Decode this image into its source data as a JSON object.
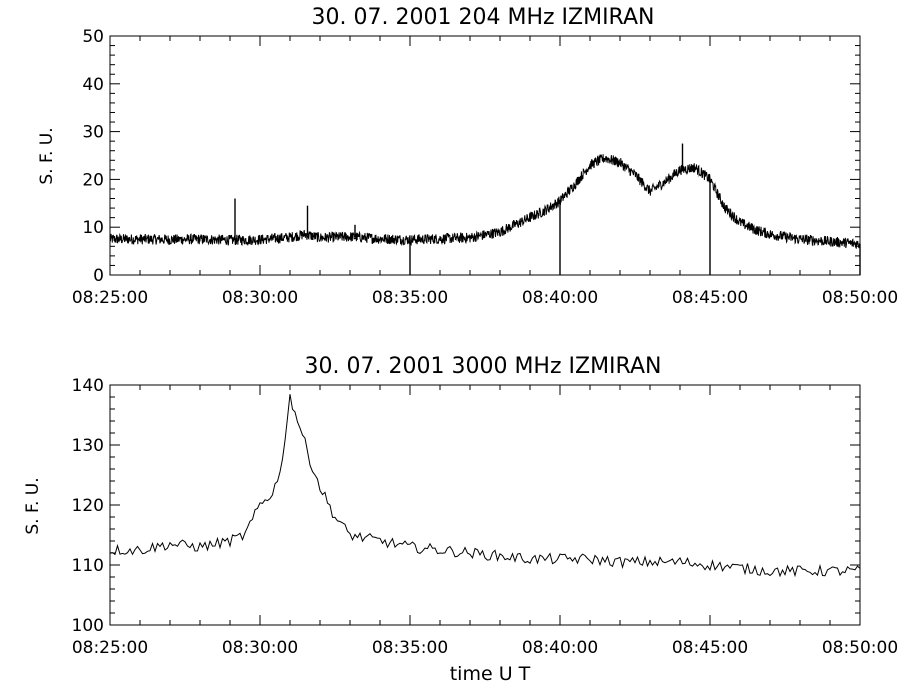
{
  "figure": {
    "background": "#ffffff",
    "line_color": "#000000"
  },
  "chart_data": [
    {
      "type": "line",
      "title": "30.  07.  2001    204  MHz    IZMIRAN",
      "ylabel": "S. F. U.",
      "xlabel": "",
      "xlim": [
        "08:25:00",
        "08:50:00"
      ],
      "ylim": [
        0,
        50
      ],
      "x_ticks": [
        "08:25:00",
        "08:30:00",
        "08:35:00",
        "08:40:00",
        "08:45:00",
        "08:50:00"
      ],
      "y_ticks": [
        "0",
        "10",
        "20",
        "30",
        "40",
        "50"
      ],
      "grid": false,
      "series": [
        {
          "x": [
            "08:25:00",
            "08:26:00",
            "08:27:00",
            "08:28:00",
            "08:29:00",
            "08:30:00",
            "08:31:00",
            "08:31:30",
            "08:32:00",
            "08:33:00",
            "08:34:00",
            "08:35:00",
            "08:36:00",
            "08:37:00",
            "08:38:00",
            "08:38:30",
            "08:39:00",
            "08:39:30",
            "08:40:00",
            "08:40:30",
            "08:41:00",
            "08:41:30",
            "08:42:00",
            "08:42:30",
            "08:43:00",
            "08:43:30",
            "08:44:00",
            "08:44:30",
            "08:45:00",
            "08:45:30",
            "08:46:00",
            "08:46:30",
            "08:47:00",
            "08:48:00",
            "08:49:00",
            "08:50:00"
          ],
          "values": [
            7.5,
            7.5,
            7.4,
            7.5,
            7.3,
            7.4,
            7.9,
            8.5,
            7.8,
            8.0,
            7.6,
            7.4,
            7.6,
            7.8,
            9.0,
            10.5,
            12.0,
            13.5,
            15.5,
            19.0,
            23.0,
            24.5,
            23.5,
            21.0,
            17.5,
            19.5,
            22.0,
            22.5,
            20.0,
            14.0,
            11.0,
            9.5,
            8.5,
            7.5,
            7.0,
            6.5
          ],
          "spikes": [
            {
              "x": "08:29:10",
              "y": 16.0
            },
            {
              "x": "08:31:35",
              "y": 14.5
            },
            {
              "x": "08:33:10",
              "y": 10.5
            },
            {
              "x": "08:35:00",
              "y": 0
            },
            {
              "x": "08:40:00",
              "y": 0
            },
            {
              "x": "08:44:05",
              "y": 27.5
            },
            {
              "x": "08:45:00",
              "y": 0
            },
            {
              "x": "08:50:00",
              "y": 0
            }
          ]
        }
      ]
    },
    {
      "type": "line",
      "title": "30.  07.  2001    3000  MHz    IZMIRAN",
      "ylabel": "S. F. U.",
      "xlabel": "time   U T",
      "xlim": [
        "08:25:00",
        "08:50:00"
      ],
      "ylim": [
        100,
        140
      ],
      "x_ticks": [
        "08:25:00",
        "08:30:00",
        "08:35:00",
        "08:40:00",
        "08:45:00",
        "08:50:00"
      ],
      "y_ticks": [
        "100",
        "110",
        "120",
        "130",
        "140"
      ],
      "grid": false,
      "series": [
        {
          "x": [
            "08:25:00",
            "08:26:00",
            "08:27:00",
            "08:28:00",
            "08:29:00",
            "08:29:30",
            "08:30:00",
            "08:30:20",
            "08:30:40",
            "08:31:00",
            "08:31:20",
            "08:31:40",
            "08:32:00",
            "08:32:30",
            "08:33:00",
            "08:34:00",
            "08:35:00",
            "08:36:00",
            "08:37:00",
            "08:38:00",
            "08:39:00",
            "08:40:00",
            "08:41:00",
            "08:42:00",
            "08:43:00",
            "08:44:00",
            "08:45:00",
            "08:46:00",
            "08:47:00",
            "08:48:00",
            "08:49:00",
            "08:50:00"
          ],
          "values": [
            112.5,
            112.5,
            113.5,
            113.0,
            114.0,
            115.0,
            120.0,
            121.5,
            125.0,
            138.0,
            133.0,
            127.5,
            123.0,
            118.0,
            115.0,
            114.0,
            113.0,
            112.5,
            112.0,
            111.5,
            111.0,
            111.0,
            111.0,
            110.5,
            110.5,
            110.5,
            110.0,
            109.5,
            109.0,
            109.0,
            109.0,
            109.0
          ]
        }
      ]
    }
  ]
}
